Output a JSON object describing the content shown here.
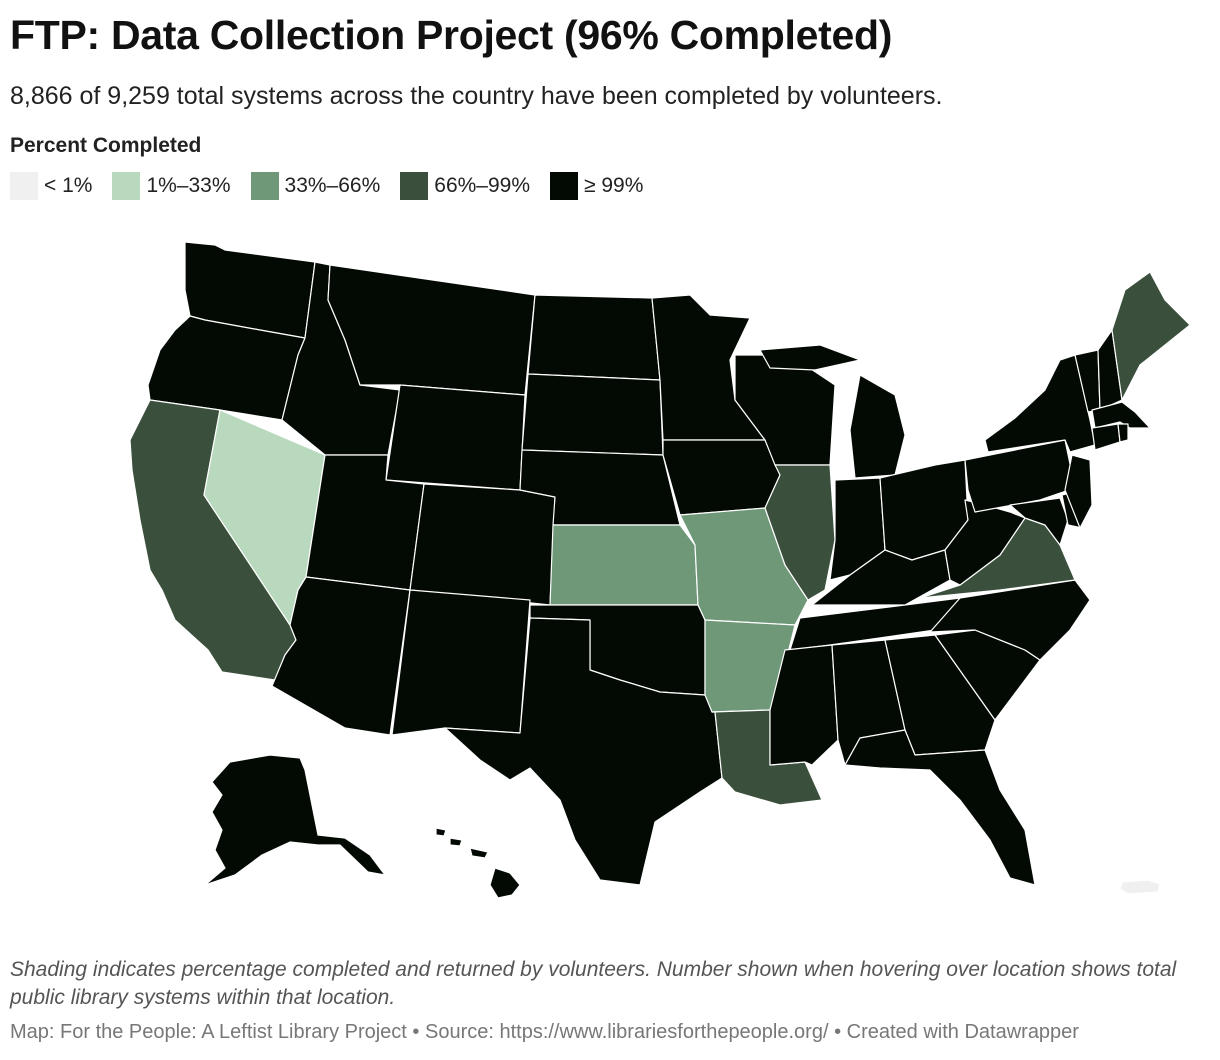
{
  "header": {
    "title": "FTP: Data Collection Project (96% Completed)",
    "subtitle": "8,866 of 9,259 total systems across the country have been completed by volunteers."
  },
  "legend": {
    "title": "Percent Completed",
    "items": [
      {
        "label": "< 1%",
        "color": "#f0f0f0"
      },
      {
        "label": "1%–33%",
        "color": "#b8d9bd"
      },
      {
        "label": "33%–66%",
        "color": "#6f9879"
      },
      {
        "label": "66%–99%",
        "color": "#3a4f3c"
      },
      {
        "label": "≥ 99%",
        "color": "#030a03"
      }
    ]
  },
  "map": {
    "scale_classes": [
      "< 1%",
      "1%–33%",
      "33%–66%",
      "66%–99%",
      "≥ 99%"
    ],
    "regions_by_class": {
      "1%–33%": [
        "Nevada"
      ],
      "33%–66%": [
        "Kansas",
        "Missouri",
        "Arkansas"
      ],
      "66%–99%": [
        "California",
        "Illinois",
        "Louisiana",
        "Virginia",
        "Maine"
      ],
      "< 1%": [
        "Puerto Rico"
      ]
    },
    "default_class": "≥ 99%"
  },
  "footer": {
    "note": "Shading indicates percentage completed and returned by volunteers. Number shown when hovering over location shows total public library systems within that location.",
    "credit": "Map: For the People: A Leftist Library Project • Source: https://www.librariesforthepeople.org/ • Created with Datawrapper"
  }
}
